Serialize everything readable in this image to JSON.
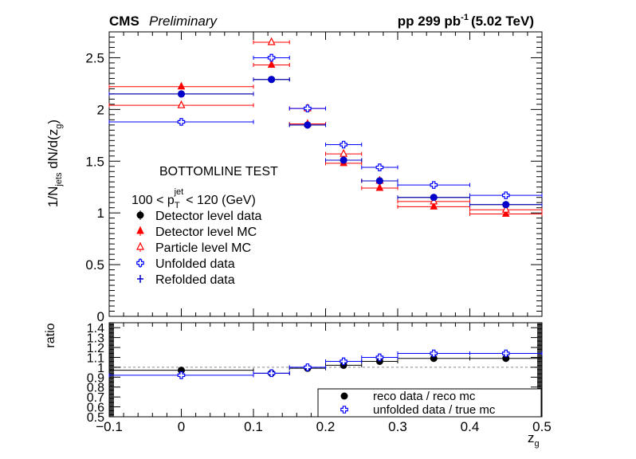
{
  "header": {
    "experiment": "CMS",
    "status": "Preliminary",
    "lumi_prefix": "pp 299 pb",
    "lumi_exp": "-1",
    "lumi_suffix": "(5.02 TeV)"
  },
  "annotations": {
    "test_label": "BOTTOMLINE TEST",
    "range_prefix": "100 < p",
    "range_sub": "T",
    "range_sup": "jet",
    "range_suffix": "< 120 (GeV)"
  },
  "axes": {
    "y_main": {
      "pre": "1/N",
      "sub1": "jets",
      "mid": " dN/d(z",
      "sub2": "g",
      "post": ")"
    },
    "y_ratio": "ratio",
    "x": {
      "base": "z",
      "sub": "g"
    }
  },
  "chart_data": [
    {
      "type": "scatter",
      "xlim": [
        -0.1,
        0.5
      ],
      "ylim": [
        0,
        2.75
      ],
      "x_ticks": [
        "−0.1",
        "0",
        "0.1",
        "0.2",
        "0.3",
        "0.4",
        "0.5"
      ],
      "y_ticks": [
        "0",
        "0.5",
        "1",
        "1.5",
        "2",
        "2.5"
      ],
      "bins": [
        [
          -0.1,
          0.1
        ],
        [
          0.1,
          0.15
        ],
        [
          0.15,
          0.2
        ],
        [
          0.2,
          0.25
        ],
        [
          0.25,
          0.3
        ],
        [
          0.3,
          0.4
        ],
        [
          0.4,
          0.5
        ]
      ],
      "x_centers": [
        0.0,
        0.125,
        0.175,
        0.225,
        0.275,
        0.35,
        0.45
      ],
      "series": [
        {
          "name": "Detector level data",
          "color": "#000000",
          "marker": "circle-filled",
          "values": [
            2.15,
            2.29,
            1.85,
            1.51,
            1.31,
            1.15,
            1.08
          ]
        },
        {
          "name": "Detector level MC",
          "color": "#ff0000",
          "marker": "triangle-filled",
          "values": [
            2.22,
            2.43,
            1.86,
            1.48,
            1.24,
            1.06,
            0.99
          ]
        },
        {
          "name": "Particle level MC",
          "color": "#ff0000",
          "marker": "triangle-open",
          "values": [
            2.04,
            2.65,
            2.01,
            1.57,
            1.31,
            1.11,
            1.03
          ]
        },
        {
          "name": "Unfolded data",
          "color": "#0000ff",
          "marker": "cross-open",
          "values": [
            1.88,
            2.5,
            2.01,
            1.66,
            1.44,
            1.27,
            1.17
          ]
        },
        {
          "name": "Refolded data",
          "color": "#0000cc",
          "marker": "circle-filled",
          "values": [
            2.15,
            2.29,
            1.85,
            1.51,
            1.31,
            1.15,
            1.08
          ]
        }
      ]
    },
    {
      "type": "scatter",
      "xlim": [
        -0.1,
        0.5
      ],
      "ylim": [
        0.5,
        1.45
      ],
      "y_ticks": [
        "0.5",
        "0.6",
        "0.7",
        "0.8",
        "0.9",
        "1",
        "1.1",
        "1.2",
        "1.3",
        "1.4"
      ],
      "reference_line": 1.0,
      "series": [
        {
          "name": "reco data / reco mc",
          "color": "#000000",
          "marker": "circle-filled",
          "values": [
            0.97,
            0.94,
            0.99,
            1.02,
            1.06,
            1.09,
            1.09
          ]
        },
        {
          "name": "unfolded data / true mc",
          "color": "#0000ff",
          "marker": "cross-open",
          "values": [
            0.92,
            0.94,
            1.0,
            1.06,
            1.1,
            1.14,
            1.14
          ]
        }
      ]
    }
  ]
}
